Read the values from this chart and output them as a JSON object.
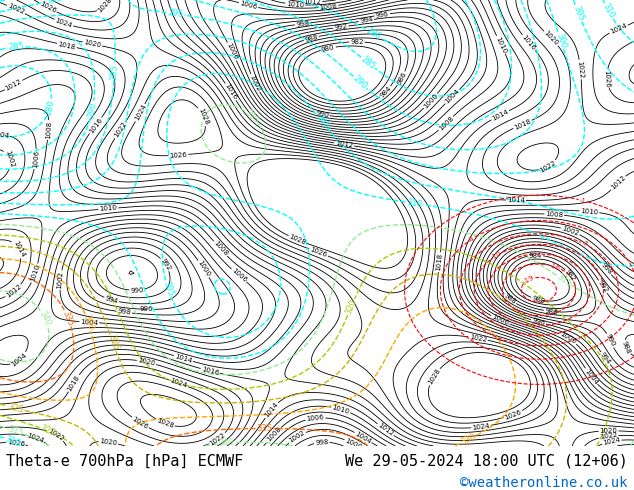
{
  "background_color": "#c8d8e8",
  "map_bg_color": "#d4e8c8",
  "title_left": "Theta-e 700hPa [hPa] ECMWF",
  "title_right": "We 29-05-2024 18:00 UTC (12+06)",
  "copyright": "©weatheronline.co.uk",
  "copyright_color": "#0066cc",
  "title_color": "#000000",
  "title_fontsize": 11,
  "copyright_fontsize": 10,
  "fig_width": 6.34,
  "fig_height": 4.9,
  "dpi": 100,
  "bottom_bar_color": "#f0f0f0",
  "bottom_bar_height": 0.09
}
